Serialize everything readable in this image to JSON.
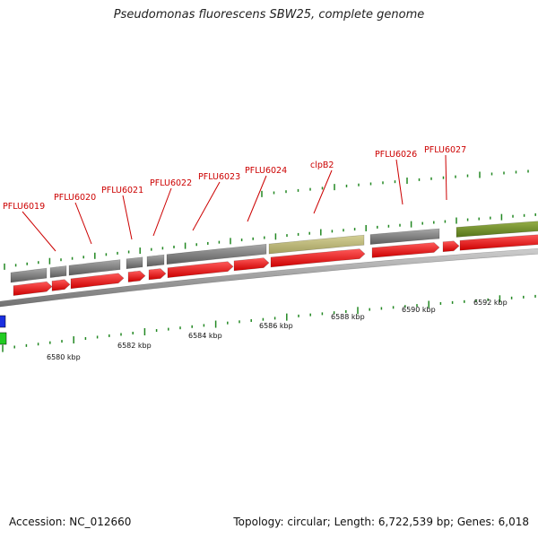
{
  "title": "Pseudomonas fluorescens SBW25, complete genome",
  "footer": {
    "accession": "Accession: NC_012660",
    "stats": "Topology: circular; Length: 6,722,539 bp; Genes: 6,018"
  },
  "colors": {
    "cds": "#ee1111",
    "gene": "#707070",
    "clpB": "#b5b070",
    "next_region": "#6f8f1f",
    "label": "#cc0000",
    "tick": "#228822",
    "backbone": "#8a8a8a"
  },
  "gene_labels": [
    "PFLU6019",
    "PFLU6020",
    "PFLU6021",
    "PFLU6022",
    "PFLU6023",
    "PFLU6024",
    "clpB2",
    "PFLU6026",
    "PFLU6027"
  ],
  "kbp_labels": [
    "6580 kbp",
    "6582 kbp",
    "6584 kbp",
    "6586 kbp",
    "6588 kbp",
    "6590 kbp",
    "6592 kbp"
  ]
}
